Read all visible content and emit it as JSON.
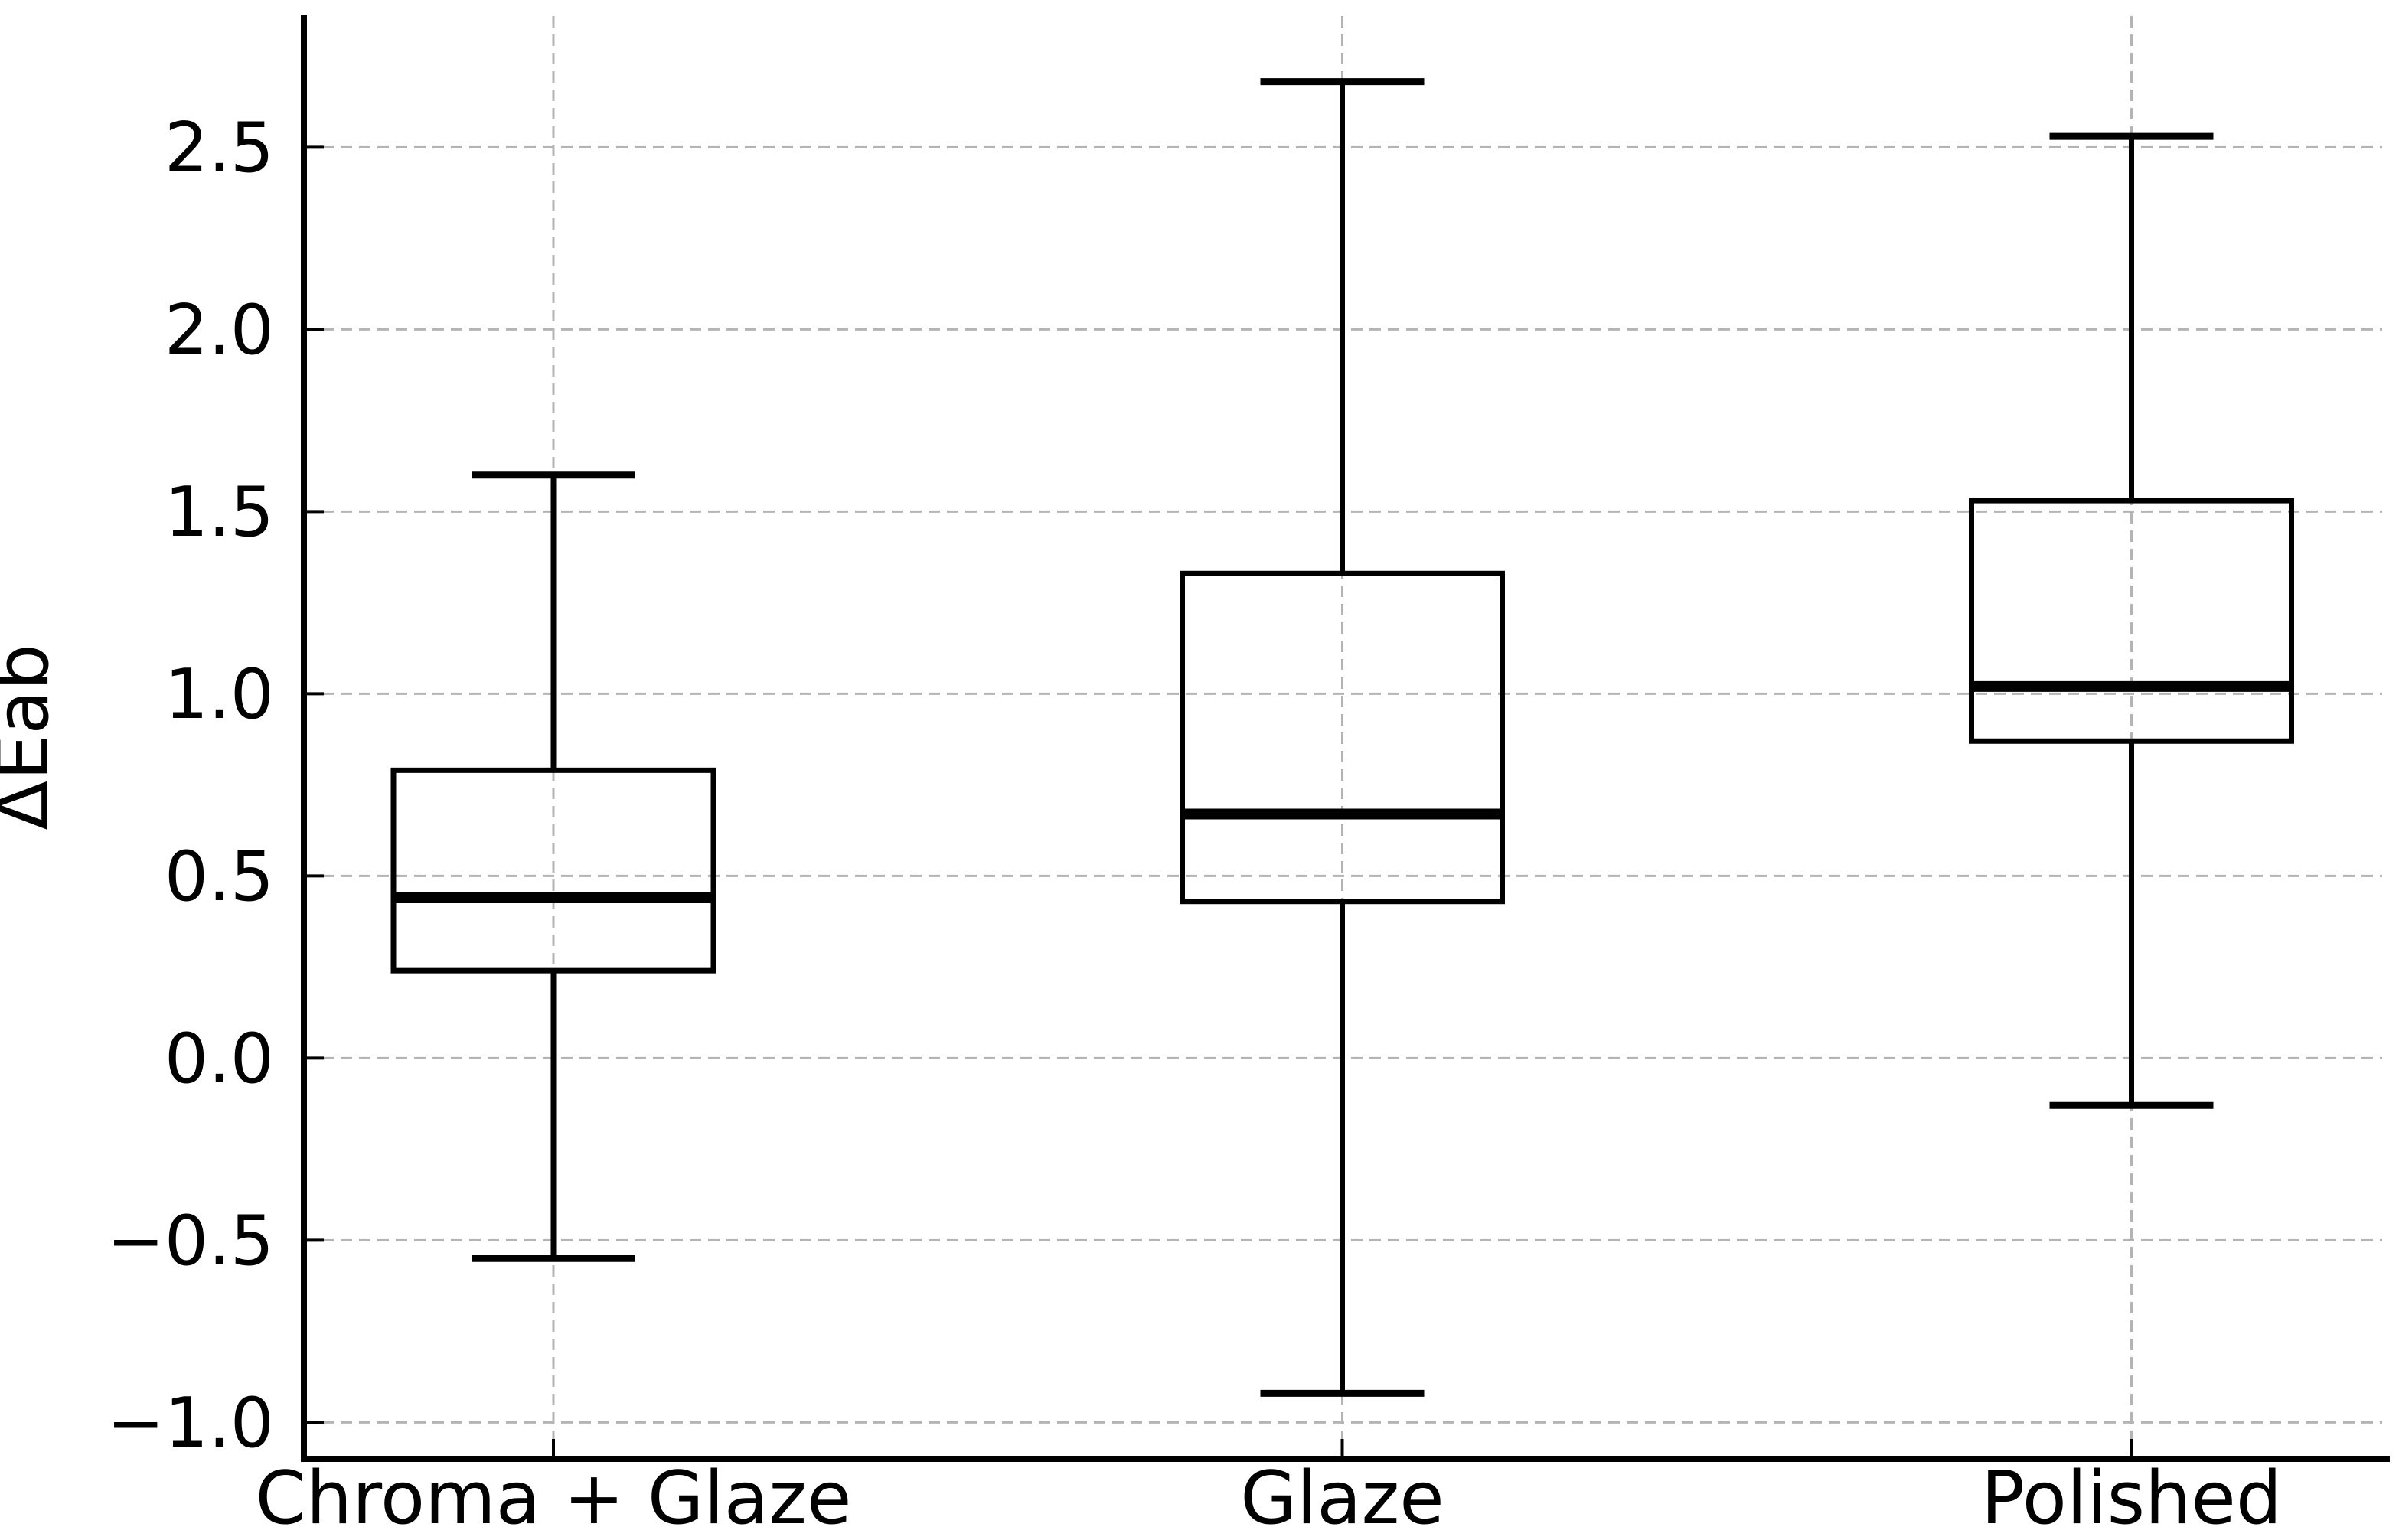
{
  "chart_data": {
    "type": "box",
    "title": "",
    "xlabel": "",
    "ylabel": "ΔEab",
    "categories": [
      "Chroma + Glaze",
      "Glaze",
      "Polished"
    ],
    "series": [
      {
        "name": "Chroma + Glaze",
        "whisker_low": -0.55,
        "q1": 0.24,
        "median": 0.44,
        "q3": 0.79,
        "whisker_high": 1.6
      },
      {
        "name": "Glaze",
        "whisker_low": -0.92,
        "q1": 0.43,
        "median": 0.67,
        "q3": 1.33,
        "whisker_high": 2.68
      },
      {
        "name": "Polished",
        "whisker_low": -0.13,
        "q1": 0.87,
        "median": 1.02,
        "q3": 1.53,
        "whisker_high": 2.53
      }
    ],
    "y_ticks": [
      2.5,
      2.0,
      1.5,
      1.0,
      0.5,
      0.0,
      -0.5,
      -1.0
    ],
    "ylim": [
      -1.1,
      2.86
    ],
    "grid": true,
    "grid_style": "dashed",
    "legend": false,
    "outliers": []
  },
  "style": {
    "line_color": "#000000",
    "grid_color": "#b4b4b4",
    "background": "#ffffff",
    "text_color": "#000000"
  }
}
